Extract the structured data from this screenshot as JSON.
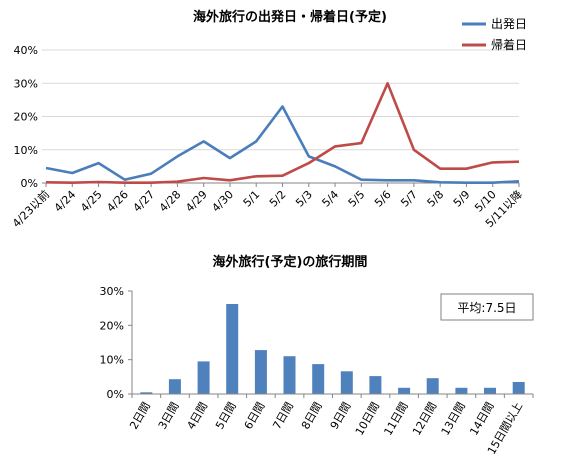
{
  "chart_data": [
    {
      "type": "line",
      "title": "海外旅行の出発日・帰着日(予定)",
      "categories": [
        "4/23以前",
        "4/24",
        "4/25",
        "4/26",
        "4/27",
        "4/28",
        "4/29",
        "4/30",
        "5/1",
        "5/2",
        "5/3",
        "5/4",
        "5/5",
        "5/6",
        "5/7",
        "5/8",
        "5/9",
        "5/10",
        "5/11以降"
      ],
      "series": [
        {
          "name": "出発日",
          "color": "#4a7ebb",
          "values": [
            4.5,
            3.0,
            6.0,
            1.0,
            2.8,
            8.0,
            12.5,
            7.5,
            12.5,
            23.0,
            8.0,
            5.0,
            1.0,
            0.8,
            0.8,
            0.2,
            0.1,
            0.1,
            0.5
          ]
        },
        {
          "name": "帰着日",
          "color": "#be4b48",
          "values": [
            0.2,
            0.1,
            0.3,
            0.1,
            0.1,
            0.4,
            1.5,
            0.8,
            2.0,
            2.2,
            6.0,
            11.0,
            12.0,
            30.0,
            10.0,
            4.3,
            4.3,
            6.2,
            6.4
          ]
        }
      ],
      "ylim": [
        0,
        40
      ],
      "yticks": [
        0,
        10,
        20,
        30,
        40
      ],
      "ytick_labels": [
        "0%",
        "10%",
        "20%",
        "30%",
        "40%"
      ],
      "legend_position": "top-right",
      "grid": true
    },
    {
      "type": "bar",
      "title": "海外旅行(予定)の旅行期間",
      "categories": [
        "2日間",
        "3日間",
        "4日間",
        "5日間",
        "6日間",
        "7日間",
        "8日間",
        "9日間",
        "10日間",
        "11日間",
        "12日間",
        "13日間",
        "14日間",
        "15日間以上"
      ],
      "values": [
        0.5,
        4.3,
        9.5,
        26.2,
        12.8,
        11.0,
        8.7,
        6.6,
        5.2,
        1.8,
        4.6,
        1.8,
        1.8,
        3.5
      ],
      "color": "#4f81bd",
      "ylim": [
        0,
        30
      ],
      "yticks": [
        0,
        10,
        20,
        30
      ],
      "ytick_labels": [
        "0%",
        "10%",
        "20%",
        "30%"
      ],
      "annotation": "平均:7.5日",
      "grid": false
    }
  ]
}
